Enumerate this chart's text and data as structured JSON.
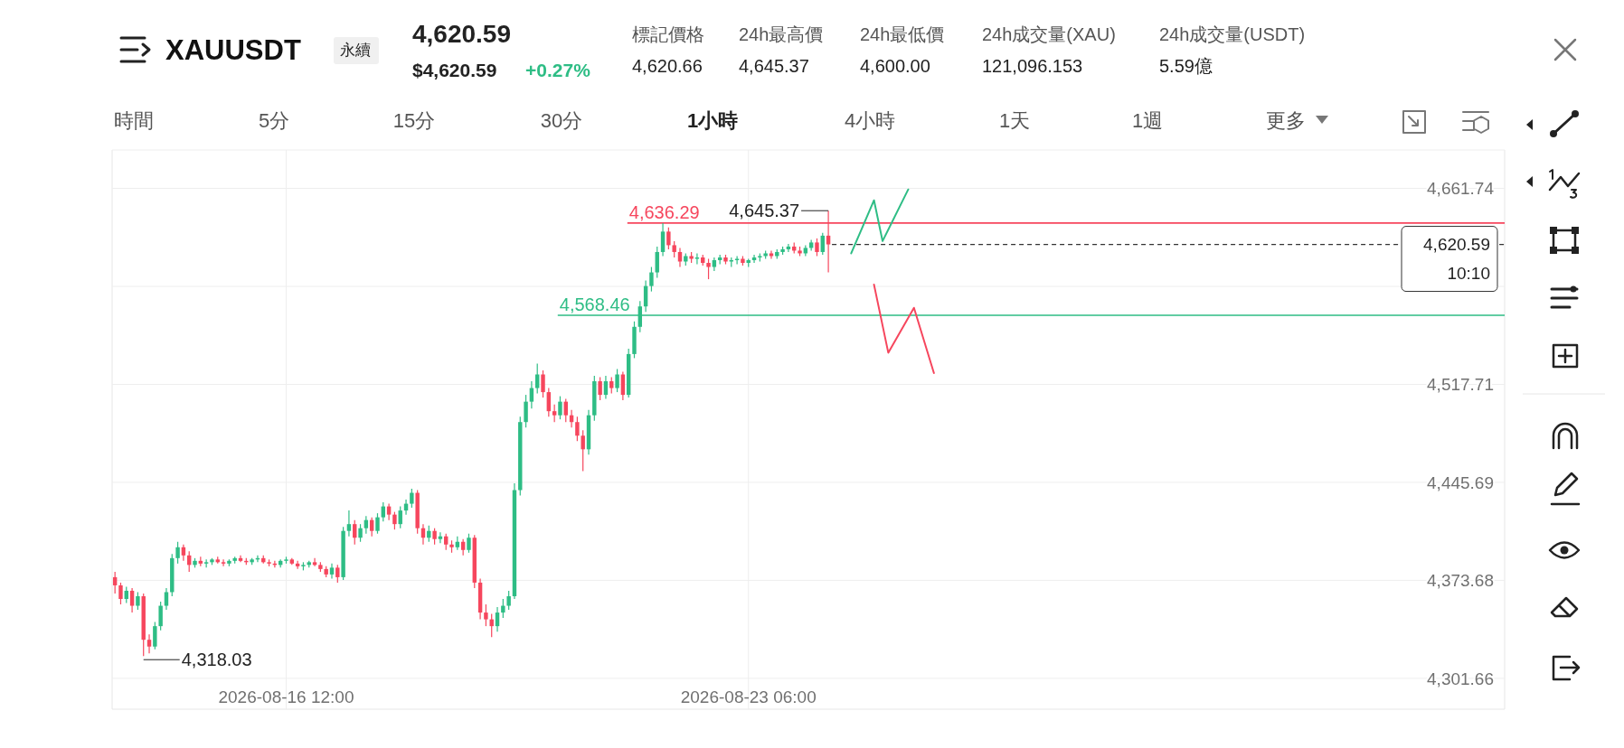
{
  "chart_data": {
    "type": "candlestick",
    "title": "XAUUSDT",
    "annotations": [
      "永續",
      "4,620.59",
      "$4,620.59",
      "+0.27%",
      "標記價格",
      "4,620.66",
      "24h最高價",
      "4,645.37",
      "24h最低價",
      "4,600.00",
      "24h成交量(XAU)",
      "121,096.153",
      "24h成交量(USDT)",
      "5.59億",
      "時間",
      "5分",
      "15分",
      "30分",
      "1小時",
      "4小時",
      "1天",
      "1週",
      "更多",
      "10:10",
      {
        "text": "4,318.03",
        "x": "2026-08-14T10:00",
        "y": 4318.03
      },
      {
        "text": "4,645.37",
        "x": "2026-08-24T10:00",
        "y": 4645.37
      }
    ],
    "x": [
      "2026-08-14T00:00",
      "2026-08-14T02:00",
      "2026-08-14T04:00",
      "2026-08-14T06:00",
      "2026-08-14T08:00",
      "2026-08-14T10:00",
      "2026-08-14T12:00",
      "2026-08-14T14:00",
      "2026-08-14T16:00",
      "2026-08-14T18:00",
      "2026-08-14T20:00",
      "2026-08-14T22:00",
      "2026-08-15T00:00",
      "2026-08-15T02:00",
      "2026-08-15T04:00",
      "2026-08-15T06:00",
      "2026-08-15T08:00",
      "2026-08-15T10:00",
      "2026-08-15T12:00",
      "2026-08-15T14:00",
      "2026-08-15T16:00",
      "2026-08-15T18:00",
      "2026-08-15T20:00",
      "2026-08-15T22:00",
      "2026-08-16T00:00",
      "2026-08-16T02:00",
      "2026-08-16T04:00",
      "2026-08-16T06:00",
      "2026-08-16T08:00",
      "2026-08-16T10:00",
      "2026-08-16T12:00",
      "2026-08-16T14:00",
      "2026-08-16T16:00",
      "2026-08-16T18:00",
      "2026-08-16T20:00",
      "2026-08-16T22:00",
      "2026-08-17T00:00",
      "2026-08-17T02:00",
      "2026-08-17T04:00",
      "2026-08-17T06:00",
      "2026-08-17T08:00",
      "2026-08-17T10:00",
      "2026-08-17T12:00",
      "2026-08-17T14:00",
      "2026-08-17T16:00",
      "2026-08-17T18:00",
      "2026-08-17T20:00",
      "2026-08-17T22:00",
      "2026-08-18T00:00",
      "2026-08-18T02:00",
      "2026-08-18T04:00",
      "2026-08-18T06:00",
      "2026-08-18T08:00",
      "2026-08-18T10:00",
      "2026-08-18T12:00",
      "2026-08-18T14:00",
      "2026-08-18T16:00",
      "2026-08-18T18:00",
      "2026-08-18T20:00",
      "2026-08-18T22:00",
      "2026-08-19T00:00",
      "2026-08-19T02:00",
      "2026-08-19T04:00",
      "2026-08-19T06:00",
      "2026-08-19T08:00",
      "2026-08-19T10:00",
      "2026-08-19T12:00",
      "2026-08-19T14:00",
      "2026-08-19T16:00",
      "2026-08-19T18:00",
      "2026-08-19T20:00",
      "2026-08-19T22:00",
      "2026-08-20T00:00",
      "2026-08-20T02:00",
      "2026-08-20T04:00",
      "2026-08-20T06:00",
      "2026-08-20T08:00",
      "2026-08-20T10:00",
      "2026-08-20T12:00",
      "2026-08-20T14:00",
      "2026-08-20T16:00",
      "2026-08-20T18:00",
      "2026-08-20T20:00",
      "2026-08-20T22:00",
      "2026-08-21T00:00",
      "2026-08-21T02:00",
      "2026-08-21T04:00",
      "2026-08-21T06:00",
      "2026-08-21T08:00",
      "2026-08-21T10:00",
      "2026-08-21T12:00",
      "2026-08-21T14:00",
      "2026-08-21T16:00",
      "2026-08-21T18:00",
      "2026-08-21T20:00",
      "2026-08-21T22:00",
      "2026-08-22T00:00",
      "2026-08-22T02:00",
      "2026-08-22T04:00",
      "2026-08-22T06:00",
      "2026-08-22T08:00",
      "2026-08-22T10:00",
      "2026-08-22T12:00",
      "2026-08-22T14:00",
      "2026-08-22T16:00",
      "2026-08-22T18:00",
      "2026-08-22T20:00",
      "2026-08-22T22:00",
      "2026-08-23T00:00",
      "2026-08-23T02:00",
      "2026-08-23T04:00",
      "2026-08-23T06:00",
      "2026-08-23T08:00",
      "2026-08-23T10:00",
      "2026-08-23T12:00",
      "2026-08-23T14:00",
      "2026-08-23T16:00",
      "2026-08-23T18:00",
      "2026-08-23T20:00",
      "2026-08-23T22:00",
      "2026-08-24T00:00",
      "2026-08-24T02:00",
      "2026-08-24T04:00",
      "2026-08-24T06:00",
      "2026-08-24T08:00",
      "2026-08-24T10:00"
    ],
    "ohlc": [
      [
        4376,
        4380,
        4364,
        4370
      ],
      [
        4370,
        4372,
        4356,
        4360
      ],
      [
        4360,
        4369,
        4357,
        4366
      ],
      [
        4366,
        4368,
        4350,
        4355
      ],
      [
        4355,
        4365,
        4352,
        4362
      ],
      [
        4362,
        4364,
        4318.03,
        4330
      ],
      [
        4330,
        4334,
        4320,
        4325
      ],
      [
        4325,
        4343,
        4323,
        4340
      ],
      [
        4340,
        4358,
        4337,
        4355
      ],
      [
        4355,
        4368,
        4352,
        4365
      ],
      [
        4365,
        4393,
        4362,
        4390
      ],
      [
        4390,
        4402,
        4386,
        4398
      ],
      [
        4398,
        4400,
        4388,
        4392
      ],
      [
        4392,
        4395,
        4380,
        4385
      ],
      [
        4385,
        4390,
        4383,
        4388
      ],
      [
        4388,
        4391,
        4384,
        4386
      ],
      [
        4386,
        4389,
        4383,
        4387
      ],
      [
        4387,
        4390,
        4385,
        4389
      ],
      [
        4389,
        4391,
        4386,
        4387
      ],
      [
        4387,
        4389,
        4384,
        4386
      ],
      [
        4386,
        4389,
        4384,
        4388
      ],
      [
        4388,
        4391,
        4386,
        4390
      ],
      [
        4390,
        4392,
        4387,
        4388
      ],
      [
        4388,
        4390,
        4385,
        4387
      ],
      [
        4387,
        4390,
        4385,
        4389
      ],
      [
        4389,
        4392,
        4387,
        4390
      ],
      [
        4390,
        4392,
        4386,
        4387
      ],
      [
        4387,
        4389,
        4384,
        4386
      ],
      [
        4386,
        4388,
        4383,
        4385
      ],
      [
        4385,
        4389,
        4383,
        4388
      ],
      [
        4388,
        4391,
        4386,
        4389
      ],
      [
        4389,
        4390,
        4385,
        4386
      ],
      [
        4386,
        4388,
        4382,
        4384
      ],
      [
        4384,
        4387,
        4381,
        4385
      ],
      [
        4385,
        4388,
        4383,
        4387
      ],
      [
        4387,
        4390,
        4384,
        4385
      ],
      [
        4385,
        4387,
        4380,
        4382
      ],
      [
        4382,
        4384,
        4376,
        4378
      ],
      [
        4378,
        4386,
        4375,
        4383
      ],
      [
        4383,
        4385,
        4372,
        4376
      ],
      [
        4376,
        4413,
        4374,
        4410
      ],
      [
        4410,
        4425,
        4406,
        4415
      ],
      [
        4415,
        4418,
        4400,
        4405
      ],
      [
        4405,
        4415,
        4402,
        4412
      ],
      [
        4412,
        4421,
        4408,
        4418
      ],
      [
        4418,
        4420,
        4406,
        4410
      ],
      [
        4410,
        4423,
        4408,
        4420
      ],
      [
        4420,
        4431,
        4417,
        4428
      ],
      [
        4428,
        4430,
        4418,
        4422
      ],
      [
        4422,
        4424,
        4411,
        4415
      ],
      [
        4415,
        4428,
        4412,
        4425
      ],
      [
        4425,
        4433,
        4422,
        4430
      ],
      [
        4430,
        4441,
        4427,
        4438
      ],
      [
        4438,
        4440,
        4408,
        4412
      ],
      [
        4412,
        4415,
        4400,
        4405
      ],
      [
        4405,
        4414,
        4402,
        4410
      ],
      [
        4410,
        4412,
        4400,
        4404
      ],
      [
        4404,
        4409,
        4401,
        4406
      ],
      [
        4406,
        4408,
        4396,
        4400
      ],
      [
        4400,
        4403,
        4394,
        4398
      ],
      [
        4398,
        4406,
        4396,
        4402
      ],
      [
        4402,
        4404,
        4392,
        4396
      ],
      [
        4396,
        4408,
        4394,
        4405
      ],
      [
        4405,
        4407,
        4368,
        4372
      ],
      [
        4372,
        4375,
        4345,
        4350
      ],
      [
        4350,
        4356,
        4340,
        4345
      ],
      [
        4345,
        4349,
        4332,
        4340
      ],
      [
        4340,
        4354,
        4336,
        4350
      ],
      [
        4350,
        4360,
        4346,
        4355
      ],
      [
        4355,
        4366,
        4352,
        4362
      ],
      [
        4362,
        4445,
        4360,
        4440
      ],
      [
        4440,
        4494,
        4436,
        4490
      ],
      [
        4490,
        4510,
        4486,
        4505
      ],
      [
        4505,
        4520,
        4500,
        4515
      ],
      [
        4515,
        4533,
        4511,
        4525
      ],
      [
        4525,
        4528,
        4508,
        4512
      ],
      [
        4512,
        4515,
        4494,
        4498
      ],
      [
        4498,
        4503,
        4490,
        4495
      ],
      [
        4495,
        4509,
        4492,
        4505
      ],
      [
        4505,
        4507,
        4490,
        4495
      ],
      [
        4495,
        4499,
        4486,
        4490
      ],
      [
        4490,
        4494,
        4476,
        4480
      ],
      [
        4480,
        4484,
        4454,
        4470
      ],
      [
        4470,
        4499,
        4466,
        4495
      ],
      [
        4495,
        4524,
        4491,
        4520
      ],
      [
        4520,
        4523,
        4506,
        4510
      ],
      [
        4510,
        4524,
        4507,
        4520
      ],
      [
        4520,
        4523,
        4511,
        4515
      ],
      [
        4515,
        4529,
        4512,
        4525
      ],
      [
        4525,
        4527,
        4506,
        4510
      ],
      [
        4510,
        4544,
        4508,
        4540
      ],
      [
        4540,
        4564,
        4537,
        4560
      ],
      [
        4560,
        4579,
        4556,
        4575
      ],
      [
        4575,
        4594,
        4571,
        4590
      ],
      [
        4590,
        4604,
        4586,
        4600
      ],
      [
        4600,
        4619,
        4596,
        4615
      ],
      [
        4615,
        4636.29,
        4612,
        4630
      ],
      [
        4630,
        4633,
        4617,
        4620
      ],
      [
        4620,
        4623,
        4611,
        4615
      ],
      [
        4615,
        4618,
        4604,
        4608
      ],
      [
        4608,
        4614,
        4605,
        4612
      ],
      [
        4612,
        4615,
        4607,
        4610
      ],
      [
        4610,
        4614,
        4606,
        4611
      ],
      [
        4611,
        4613,
        4605,
        4607
      ],
      [
        4607,
        4610,
        4595,
        4604
      ],
      [
        4604,
        4611,
        4601,
        4609
      ],
      [
        4609,
        4613,
        4606,
        4611
      ],
      [
        4611,
        4613,
        4606,
        4608
      ],
      [
        4608,
        4611,
        4604,
        4609
      ],
      [
        4609,
        4612,
        4606,
        4610
      ],
      [
        4610,
        4612,
        4605,
        4607
      ],
      [
        4607,
        4610,
        4604,
        4609
      ],
      [
        4609,
        4613,
        4607,
        4611
      ],
      [
        4611,
        4614,
        4608,
        4612
      ],
      [
        4612,
        4616,
        4610,
        4614
      ],
      [
        4614,
        4616,
        4610,
        4612
      ],
      [
        4612,
        4617,
        4610,
        4615
      ],
      [
        4615,
        4619,
        4613,
        4617
      ],
      [
        4617,
        4621,
        4615,
        4619
      ],
      [
        4619,
        4622,
        4614,
        4616
      ],
      [
        4616,
        4619,
        4612,
        4614
      ],
      [
        4614,
        4620,
        4612,
        4618
      ],
      [
        4618,
        4624,
        4616,
        4622
      ],
      [
        4622,
        4625,
        4612,
        4615
      ],
      [
        4615,
        4629,
        4613,
        4627
      ],
      [
        4627,
        4645.37,
        4600,
        4620.59
      ]
    ],
    "series": [
      {
        "type": "line",
        "color": "#2ebd85",
        "x": [
          "2026-08-24T18:00",
          "2026-08-25T02:00",
          "2026-08-25T05:00",
          "2026-08-25T14:00"
        ],
        "values": [
          4614,
          4653,
          4623,
          4661
        ]
      },
      {
        "type": "line",
        "color": "#f6465d",
        "x": [
          "2026-08-25T02:00",
          "2026-08-25T07:00",
          "2026-08-25T16:00",
          "2026-08-25T23:00"
        ],
        "values": [
          4591,
          4541,
          4574,
          4526
        ]
      }
    ],
    "xlim": [
      "2026-08-13T23:00",
      "2026-09-03T07:00"
    ],
    "xticks": [
      {
        "value": "2026-08-16T12:00",
        "label": "2026-08-16 12:00"
      },
      {
        "value": "2026-08-23T06:00",
        "label": "2026-08-23 06:00"
      }
    ],
    "ylim": [
      4279,
      4690
    ],
    "yticks": [
      {
        "value": 4301.66,
        "label": "4,301.66"
      },
      {
        "value": 4373.68,
        "label": "4,373.68"
      },
      {
        "value": 4445.69,
        "label": "4,445.69"
      },
      {
        "value": 4517.71,
        "label": "4,517.71"
      },
      {
        "value": 4589.72,
        "label": null
      },
      {
        "value": 4661.74,
        "label": "4,661.74"
      }
    ],
    "ref_lines": [
      {
        "axis": "y",
        "value": 4636.29,
        "label": "4,636.29",
        "color": "#f6465d",
        "line_style": "solid"
      },
      {
        "axis": "y",
        "value": 4568.46,
        "label": "4,568.46",
        "color": "#2ebd85",
        "line_style": "solid"
      },
      {
        "axis": "y",
        "value": 4620.59,
        "label": "4,620.59",
        "color": "#333333",
        "line_style": "dashed"
      }
    ],
    "grid": true,
    "line_style": "solid"
  }
}
